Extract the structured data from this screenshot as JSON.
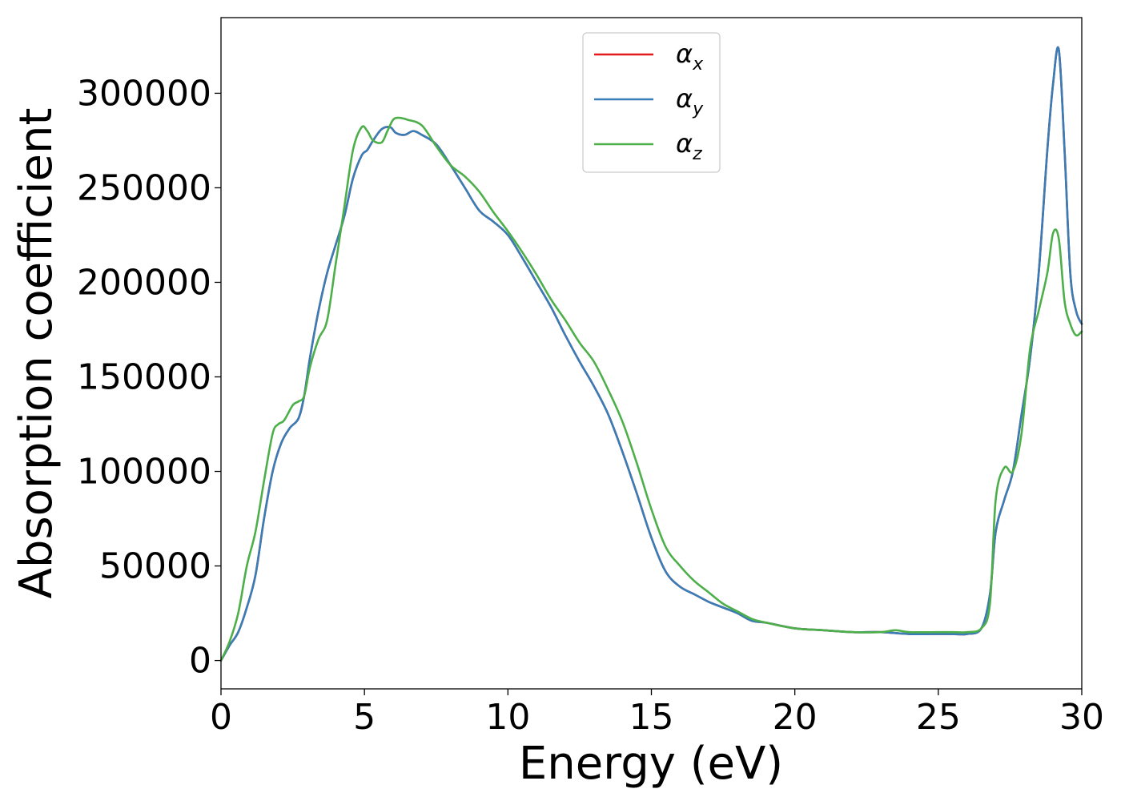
{
  "chart_data": {
    "type": "line",
    "xlabel": "Energy (eV)",
    "ylabel": "Absorption coefficient",
    "xlim": [
      0,
      30
    ],
    "ylim": [
      -15000,
      340000
    ],
    "x_ticks": [
      0,
      5,
      10,
      15,
      20,
      25,
      30
    ],
    "y_ticks": [
      0,
      50000,
      100000,
      150000,
      200000,
      250000,
      300000
    ],
    "grid": false,
    "legend_position": "top-center",
    "colors": {
      "x": "#e41a1c",
      "y": "#377eb8",
      "z": "#4daf4a"
    },
    "series": [
      {
        "name": "α",
        "subscript": "x",
        "color": "#e41a1c",
        "x": [
          0,
          0.3,
          0.6,
          0.9,
          1.2,
          1.5,
          1.8,
          2.1,
          2.4,
          2.7,
          2.9,
          3.1,
          3.4,
          3.7,
          4.0,
          4.3,
          4.6,
          4.9,
          5.1,
          5.3,
          5.6,
          5.9,
          6.1,
          6.4,
          6.7,
          7.0,
          7.5,
          8.0,
          8.5,
          9.0,
          9.5,
          10.0,
          10.5,
          11.0,
          11.5,
          12.0,
          12.5,
          13.0,
          13.5,
          14.0,
          14.5,
          15.0,
          15.5,
          16.0,
          16.5,
          17.0,
          17.5,
          18.0,
          18.5,
          19.0,
          20.0,
          21.0,
          22.0,
          23.0,
          24.0,
          25.0,
          25.5,
          26.0,
          26.5,
          26.8,
          27.0,
          27.3,
          27.6,
          27.9,
          28.2,
          28.5,
          28.8,
          29.0,
          29.2,
          29.4,
          29.6,
          29.8,
          30.0
        ],
        "y": [
          0,
          8000,
          15000,
          28000,
          45000,
          75000,
          100000,
          115000,
          123000,
          128000,
          140000,
          160000,
          185000,
          205000,
          220000,
          235000,
          255000,
          267000,
          270000,
          275000,
          281000,
          282000,
          279000,
          278000,
          280000,
          278000,
          273000,
          262000,
          250000,
          238000,
          232000,
          225000,
          213000,
          200000,
          187000,
          172000,
          158000,
          145000,
          130000,
          110000,
          88000,
          65000,
          47000,
          39000,
          35000,
          31000,
          28000,
          25000,
          21000,
          20000,
          17000,
          16000,
          15000,
          15000,
          14000,
          14000,
          14000,
          14000,
          17000,
          35000,
          68000,
          85000,
          100000,
          130000,
          160000,
          205000,
          270000,
          305000,
          323000,
          270000,
          205000,
          185000,
          178000
        ]
      },
      {
        "name": "α",
        "subscript": "y",
        "color": "#377eb8",
        "x": [
          0,
          0.3,
          0.6,
          0.9,
          1.2,
          1.5,
          1.8,
          2.1,
          2.4,
          2.7,
          2.9,
          3.1,
          3.4,
          3.7,
          4.0,
          4.3,
          4.6,
          4.9,
          5.1,
          5.3,
          5.6,
          5.9,
          6.1,
          6.4,
          6.7,
          7.0,
          7.5,
          8.0,
          8.5,
          9.0,
          9.5,
          10.0,
          10.5,
          11.0,
          11.5,
          12.0,
          12.5,
          13.0,
          13.5,
          14.0,
          14.5,
          15.0,
          15.5,
          16.0,
          16.5,
          17.0,
          17.5,
          18.0,
          18.5,
          19.0,
          20.0,
          21.0,
          22.0,
          23.0,
          24.0,
          25.0,
          25.5,
          26.0,
          26.5,
          26.8,
          27.0,
          27.3,
          27.6,
          27.9,
          28.2,
          28.5,
          28.8,
          29.0,
          29.2,
          29.4,
          29.6,
          29.8,
          30.0
        ],
        "y": [
          0,
          8000,
          15000,
          28000,
          45000,
          75000,
          100000,
          115000,
          123000,
          128000,
          140000,
          160000,
          185000,
          205000,
          220000,
          235000,
          255000,
          267000,
          270000,
          275000,
          281000,
          282000,
          279000,
          278000,
          280000,
          278000,
          273000,
          262000,
          250000,
          238000,
          232000,
          225000,
          213000,
          200000,
          187000,
          172000,
          158000,
          145000,
          130000,
          110000,
          88000,
          65000,
          47000,
          39000,
          35000,
          31000,
          28000,
          25000,
          21000,
          20000,
          17000,
          16000,
          15000,
          15000,
          14000,
          14000,
          14000,
          14000,
          17000,
          35000,
          68000,
          85000,
          100000,
          130000,
          160000,
          205000,
          270000,
          305000,
          323000,
          270000,
          205000,
          185000,
          178000
        ]
      },
      {
        "name": "α",
        "subscript": "z",
        "color": "#4daf4a",
        "x": [
          0,
          0.3,
          0.6,
          0.9,
          1.2,
          1.5,
          1.8,
          2.0,
          2.2,
          2.5,
          2.7,
          2.9,
          3.1,
          3.4,
          3.7,
          4.0,
          4.3,
          4.6,
          4.9,
          5.1,
          5.3,
          5.6,
          5.8,
          6.0,
          6.2,
          6.5,
          7.0,
          7.5,
          8.0,
          8.5,
          9.0,
          9.5,
          10.0,
          10.5,
          11.0,
          11.5,
          12.0,
          12.5,
          13.0,
          13.5,
          14.0,
          14.5,
          15.0,
          15.5,
          16.0,
          16.5,
          17.0,
          17.5,
          18.0,
          18.5,
          19.0,
          20.0,
          21.0,
          22.0,
          23.0,
          23.5,
          24.0,
          25.0,
          25.5,
          26.0,
          26.5,
          26.8,
          27.0,
          27.3,
          27.6,
          27.9,
          28.2,
          28.5,
          28.8,
          29.0,
          29.2,
          29.4,
          29.6,
          29.8,
          30.0
        ],
        "y": [
          0,
          10000,
          25000,
          50000,
          68000,
          95000,
          120000,
          125000,
          127000,
          135000,
          137000,
          140000,
          155000,
          170000,
          180000,
          210000,
          240000,
          270000,
          282000,
          280000,
          275000,
          274000,
          280000,
          286000,
          287000,
          286000,
          283000,
          272000,
          262000,
          256000,
          248000,
          237000,
          227000,
          216000,
          204000,
          191000,
          180000,
          168000,
          158000,
          143000,
          126000,
          104000,
          80000,
          60000,
          50000,
          42000,
          36000,
          30000,
          26000,
          22000,
          20000,
          17000,
          16000,
          15000,
          15000,
          16000,
          15000,
          15000,
          15000,
          15000,
          17000,
          30000,
          85000,
          102000,
          100000,
          120000,
          165000,
          185000,
          205000,
          226000,
          223000,
          190000,
          178000,
          172000,
          174000
        ]
      }
    ]
  }
}
